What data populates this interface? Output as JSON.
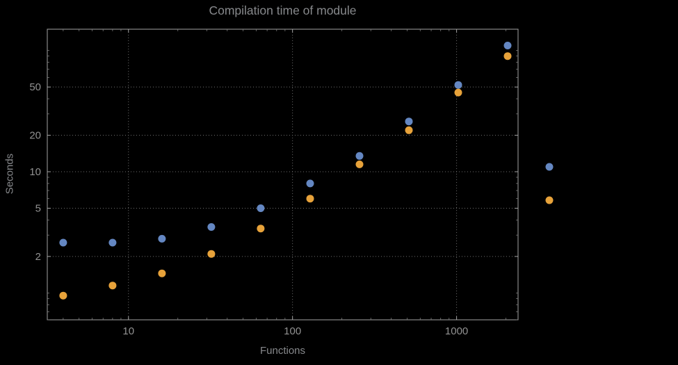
{
  "page": {
    "background": "#000000",
    "text_color": "#87898c"
  },
  "chart_data": {
    "type": "scatter",
    "title": "Compilation time of module",
    "xlabel": "Functions",
    "ylabel": "Seconds",
    "x_scale": "log",
    "y_scale": "log",
    "xlim": [
      3.2,
      2370
    ],
    "ylim": [
      0.6,
      150
    ],
    "grid": "dotted-at-major-ticks",
    "legend_position": "right-outside",
    "legend_labels_visible": false,
    "x_ticks": [
      {
        "value": 10,
        "label": "10"
      },
      {
        "value": 100,
        "label": "100"
      },
      {
        "value": 1000,
        "label": "1000"
      }
    ],
    "y_ticks": [
      {
        "value": 2,
        "label": "2"
      },
      {
        "value": 5,
        "label": "5"
      },
      {
        "value": 10,
        "label": "10"
      },
      {
        "value": 20,
        "label": "20"
      },
      {
        "value": 50,
        "label": "50"
      }
    ],
    "x": [
      4,
      8,
      16,
      32,
      64,
      128,
      256,
      512,
      1024,
      2048
    ],
    "series": [
      {
        "name": "blue",
        "color": "#6487c2",
        "values": [
          2.6,
          2.6,
          2.8,
          3.5,
          5.0,
          8.0,
          13.5,
          26,
          52,
          110
        ]
      },
      {
        "name": "orange",
        "color": "#e7a23a",
        "values": [
          0.95,
          1.15,
          1.45,
          2.1,
          3.4,
          6.0,
          11.5,
          22,
          45,
          90
        ]
      }
    ],
    "legend_markers": [
      "blue",
      "orange"
    ]
  }
}
